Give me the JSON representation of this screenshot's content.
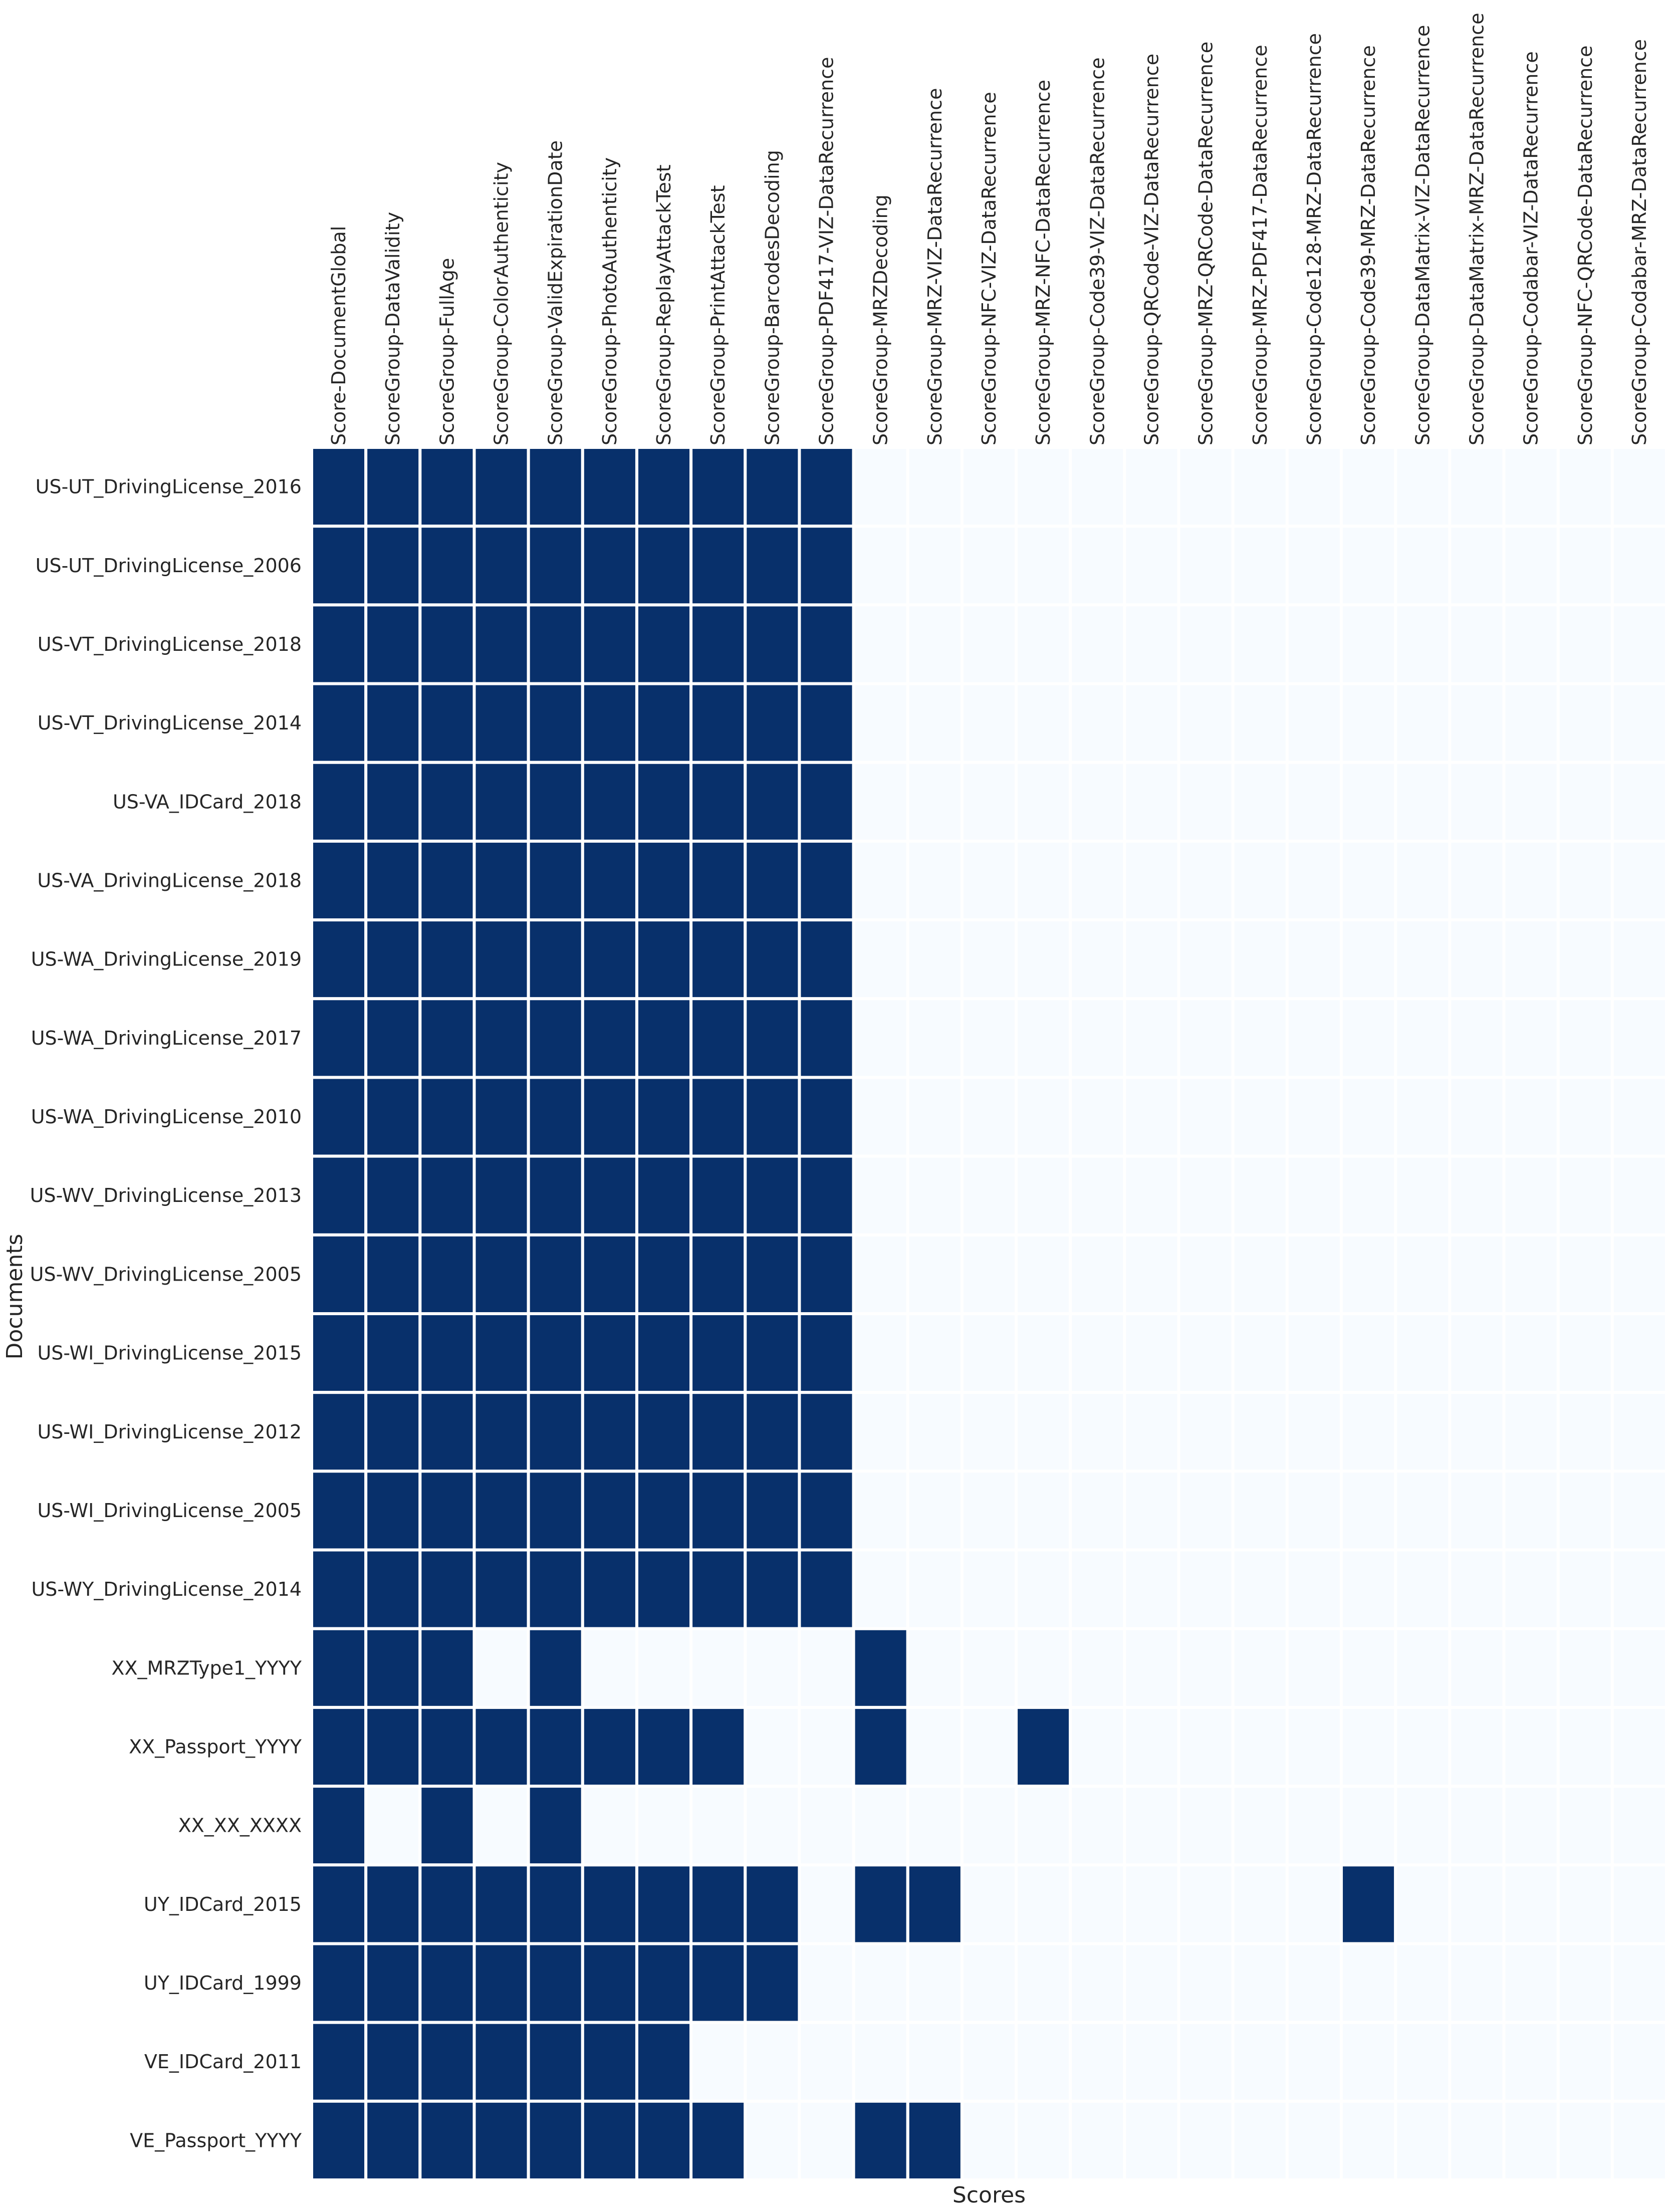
{
  "chart_data": {
    "type": "heatmap",
    "title": "",
    "xlabel": "Scores",
    "ylabel": "Documents",
    "colors": {
      "high": "#08306b",
      "low": "#f7fbff",
      "grid": "#ffffff"
    },
    "value_range": [
      0,
      1
    ],
    "x": [
      "Score-DocumentGlobal",
      "ScoreGroup-DataValidity",
      "ScoreGroup-FullAge",
      "ScoreGroup-ColorAuthenticity",
      "ScoreGroup-ValidExpirationDate",
      "ScoreGroup-PhotoAuthenticity",
      "ScoreGroup-ReplayAttackTest",
      "ScoreGroup-PrintAttackTest",
      "ScoreGroup-BarcodesDecoding",
      "ScoreGroup-PDF417-VIZ-DataRecurrence",
      "ScoreGroup-MRZDecoding",
      "ScoreGroup-MRZ-VIZ-DataRecurrence",
      "ScoreGroup-NFC-VIZ-DataRecurrence",
      "ScoreGroup-MRZ-NFC-DataRecurrence",
      "ScoreGroup-Code39-VIZ-DataRecurrence",
      "ScoreGroup-QRCode-VIZ-DataRecurrence",
      "ScoreGroup-MRZ-QRCode-DataRecurrence",
      "ScoreGroup-MRZ-PDF417-DataRecurrence",
      "ScoreGroup-Code128-MRZ-DataRecurrence",
      "ScoreGroup-Code39-MRZ-DataRecurrence",
      "ScoreGroup-DataMatrix-VIZ-DataRecurrence",
      "ScoreGroup-DataMatrix-MRZ-DataRecurrence",
      "ScoreGroup-Codabar-VIZ-DataRecurrence",
      "ScoreGroup-NFC-QRCode-DataRecurrence",
      "ScoreGroup-Codabar-MRZ-DataRecurrence"
    ],
    "y": [
      "US-UT_DrivingLicense_2016",
      "US-UT_DrivingLicense_2006",
      "US-VT_DrivingLicense_2018",
      "US-VT_DrivingLicense_2014",
      "US-VA_IDCard_2018",
      "US-VA_DrivingLicense_2018",
      "US-WA_DrivingLicense_2019",
      "US-WA_DrivingLicense_2017",
      "US-WA_DrivingLicense_2010",
      "US-WV_DrivingLicense_2013",
      "US-WV_DrivingLicense_2005",
      "US-WI_DrivingLicense_2015",
      "US-WI_DrivingLicense_2012",
      "US-WI_DrivingLicense_2005",
      "US-WY_DrivingLicense_2014",
      "XX_MRZType1_YYYY",
      "XX_Passport_YYYY",
      "XX_XX_XXXX",
      "UY_IDCard_2015",
      "UY_IDCard_1999",
      "VE_IDCard_2011",
      "VE_Passport_YYYY"
    ],
    "values": [
      [
        1,
        1,
        1,
        1,
        1,
        1,
        1,
        1,
        1,
        1,
        0,
        0,
        0,
        0,
        0,
        0,
        0,
        0,
        0,
        0,
        0,
        0,
        0,
        0,
        0
      ],
      [
        1,
        1,
        1,
        1,
        1,
        1,
        1,
        1,
        1,
        1,
        0,
        0,
        0,
        0,
        0,
        0,
        0,
        0,
        0,
        0,
        0,
        0,
        0,
        0,
        0
      ],
      [
        1,
        1,
        1,
        1,
        1,
        1,
        1,
        1,
        1,
        1,
        0,
        0,
        0,
        0,
        0,
        0,
        0,
        0,
        0,
        0,
        0,
        0,
        0,
        0,
        0
      ],
      [
        1,
        1,
        1,
        1,
        1,
        1,
        1,
        1,
        1,
        1,
        0,
        0,
        0,
        0,
        0,
        0,
        0,
        0,
        0,
        0,
        0,
        0,
        0,
        0,
        0
      ],
      [
        1,
        1,
        1,
        1,
        1,
        1,
        1,
        1,
        1,
        1,
        0,
        0,
        0,
        0,
        0,
        0,
        0,
        0,
        0,
        0,
        0,
        0,
        0,
        0,
        0
      ],
      [
        1,
        1,
        1,
        1,
        1,
        1,
        1,
        1,
        1,
        1,
        0,
        0,
        0,
        0,
        0,
        0,
        0,
        0,
        0,
        0,
        0,
        0,
        0,
        0,
        0
      ],
      [
        1,
        1,
        1,
        1,
        1,
        1,
        1,
        1,
        1,
        1,
        0,
        0,
        0,
        0,
        0,
        0,
        0,
        0,
        0,
        0,
        0,
        0,
        0,
        0,
        0
      ],
      [
        1,
        1,
        1,
        1,
        1,
        1,
        1,
        1,
        1,
        1,
        0,
        0,
        0,
        0,
        0,
        0,
        0,
        0,
        0,
        0,
        0,
        0,
        0,
        0,
        0
      ],
      [
        1,
        1,
        1,
        1,
        1,
        1,
        1,
        1,
        1,
        1,
        0,
        0,
        0,
        0,
        0,
        0,
        0,
        0,
        0,
        0,
        0,
        0,
        0,
        0,
        0
      ],
      [
        1,
        1,
        1,
        1,
        1,
        1,
        1,
        1,
        1,
        1,
        0,
        0,
        0,
        0,
        0,
        0,
        0,
        0,
        0,
        0,
        0,
        0,
        0,
        0,
        0
      ],
      [
        1,
        1,
        1,
        1,
        1,
        1,
        1,
        1,
        1,
        1,
        0,
        0,
        0,
        0,
        0,
        0,
        0,
        0,
        0,
        0,
        0,
        0,
        0,
        0,
        0
      ],
      [
        1,
        1,
        1,
        1,
        1,
        1,
        1,
        1,
        1,
        1,
        0,
        0,
        0,
        0,
        0,
        0,
        0,
        0,
        0,
        0,
        0,
        0,
        0,
        0,
        0
      ],
      [
        1,
        1,
        1,
        1,
        1,
        1,
        1,
        1,
        1,
        1,
        0,
        0,
        0,
        0,
        0,
        0,
        0,
        0,
        0,
        0,
        0,
        0,
        0,
        0,
        0
      ],
      [
        1,
        1,
        1,
        1,
        1,
        1,
        1,
        1,
        1,
        1,
        0,
        0,
        0,
        0,
        0,
        0,
        0,
        0,
        0,
        0,
        0,
        0,
        0,
        0,
        0
      ],
      [
        1,
        1,
        1,
        1,
        1,
        1,
        1,
        1,
        1,
        1,
        0,
        0,
        0,
        0,
        0,
        0,
        0,
        0,
        0,
        0,
        0,
        0,
        0,
        0,
        0
      ],
      [
        1,
        1,
        1,
        0,
        1,
        0,
        0,
        0,
        0,
        0,
        1,
        0,
        0,
        0,
        0,
        0,
        0,
        0,
        0,
        0,
        0,
        0,
        0,
        0,
        0
      ],
      [
        1,
        1,
        1,
        1,
        1,
        1,
        1,
        1,
        0,
        0,
        1,
        0,
        0,
        1,
        0,
        0,
        0,
        0,
        0,
        0,
        0,
        0,
        0,
        0,
        0
      ],
      [
        1,
        0,
        1,
        0,
        1,
        0,
        0,
        0,
        0,
        0,
        0,
        0,
        0,
        0,
        0,
        0,
        0,
        0,
        0,
        0,
        0,
        0,
        0,
        0,
        0
      ],
      [
        1,
        1,
        1,
        1,
        1,
        1,
        1,
        1,
        1,
        0,
        1,
        1,
        0,
        0,
        0,
        0,
        0,
        0,
        0,
        1,
        0,
        0,
        0,
        0,
        0
      ],
      [
        1,
        1,
        1,
        1,
        1,
        1,
        1,
        1,
        1,
        0,
        0,
        0,
        0,
        0,
        0,
        0,
        0,
        0,
        0,
        0,
        0,
        0,
        0,
        0,
        0
      ],
      [
        1,
        1,
        1,
        1,
        1,
        1,
        1,
        0,
        0,
        0,
        0,
        0,
        0,
        0,
        0,
        0,
        0,
        0,
        0,
        0,
        0,
        0,
        0,
        0,
        0
      ],
      [
        1,
        1,
        1,
        1,
        1,
        1,
        1,
        1,
        0,
        0,
        1,
        1,
        0,
        0,
        0,
        0,
        0,
        0,
        0,
        0,
        0,
        0,
        0,
        0,
        0
      ]
    ]
  }
}
